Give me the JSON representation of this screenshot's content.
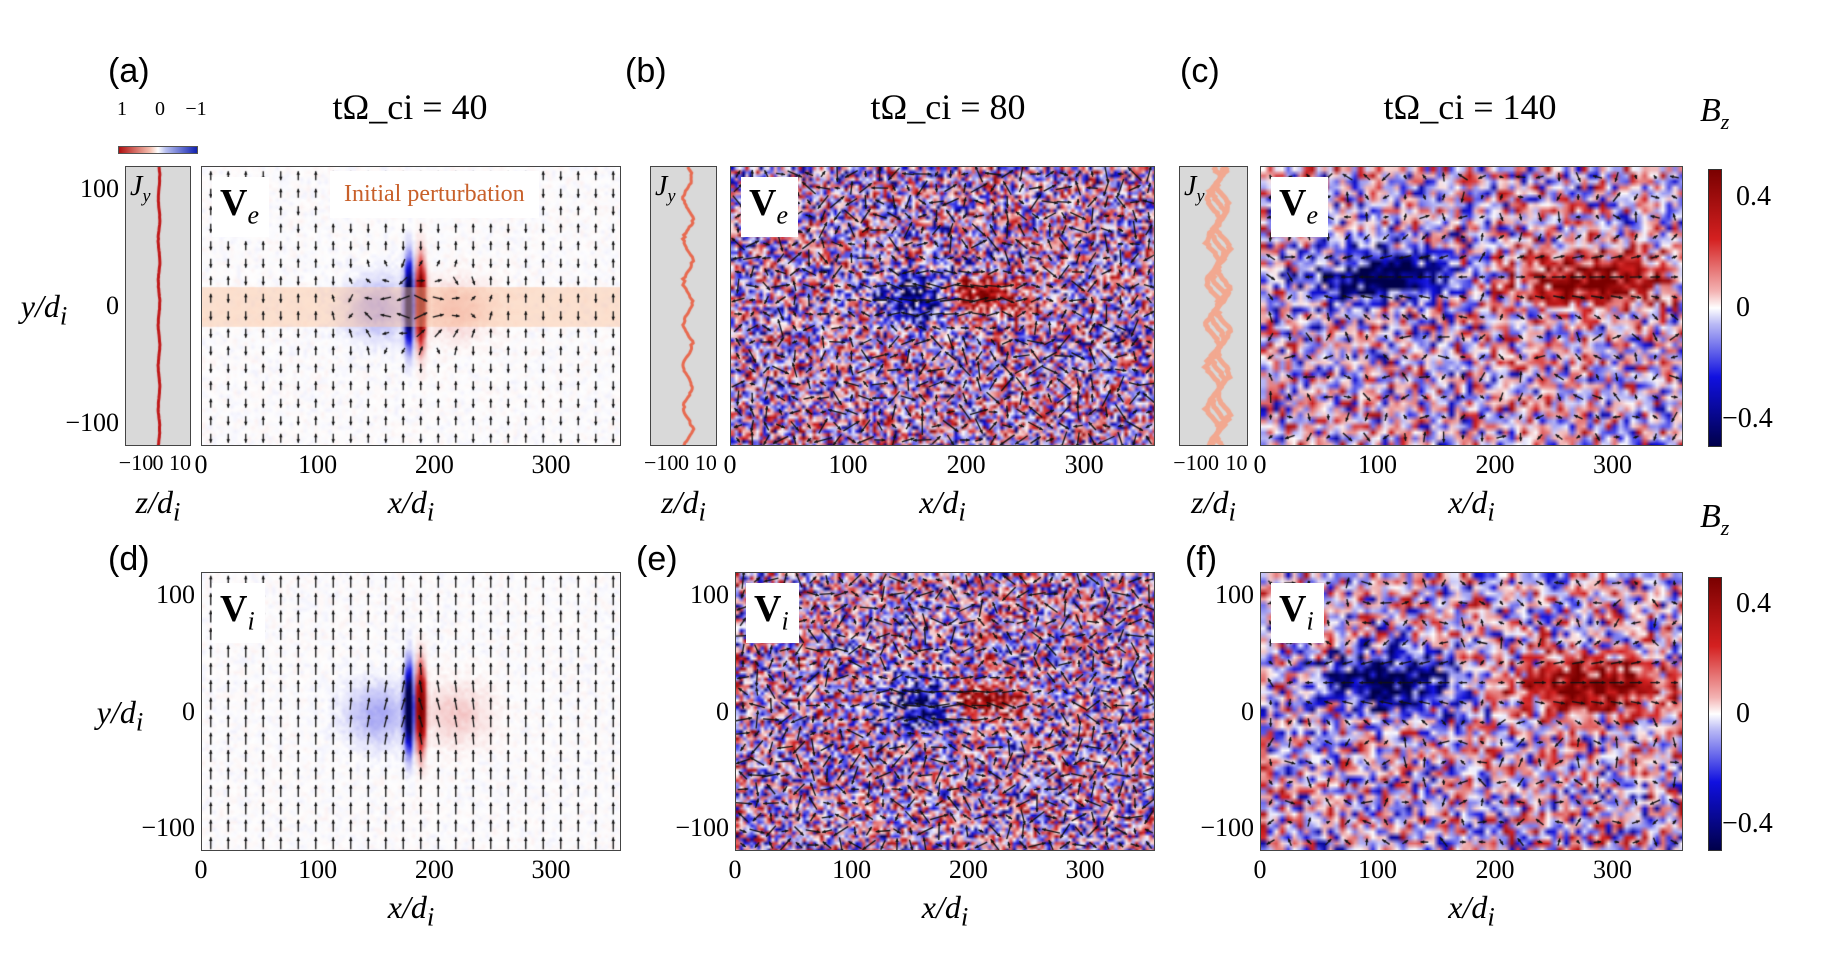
{
  "panel_labels": [
    "(a)",
    "(b)",
    "(c)",
    "(d)",
    "(e)",
    "(f)"
  ],
  "titles": [
    "tΩ_ci = 40",
    "tΩ_ci = 80",
    "tΩ_ci = 140"
  ],
  "annotation": "Initial perturbation",
  "colorbar": {
    "label": "B",
    "label_sub": "z",
    "ticks": [
      "0.4",
      "0",
      "−0.4"
    ],
    "range": [
      -0.5,
      0.5
    ],
    "colors": [
      "#00004a",
      "#1010e0",
      "#ffffff",
      "#d42020",
      "#7a0000"
    ]
  },
  "jy_colorbar": {
    "ticks": [
      "1",
      "0",
      "−1"
    ]
  },
  "jy_inset": {
    "label": "J",
    "label_sub": "y",
    "xticks": [
      "−10",
      "0",
      "10"
    ],
    "xlabel": "z/d",
    "xlabel_sub": "i",
    "background": "#d9d9d9"
  },
  "axes": {
    "xlabel": "x/d",
    "xlabel_sub": "i",
    "ylabel": "y/d",
    "ylabel_sub": "i",
    "xticks": [
      "0",
      "100",
      "200",
      "300"
    ],
    "yticks": [
      "100",
      "0",
      "−100"
    ]
  },
  "chart_data": [
    {
      "type": "heatmap",
      "panel": "(a)",
      "time": "tΩ_ci = 40",
      "field": "B_z",
      "vectors": "V_e",
      "vector_label": "V",
      "vector_sub": "e",
      "xlim": [
        0,
        360
      ],
      "ylim": [
        -120,
        120
      ],
      "inset": "J_y",
      "highlight_band_y": [
        -17,
        17
      ]
    },
    {
      "type": "heatmap",
      "panel": "(b)",
      "time": "tΩ_ci = 80",
      "field": "B_z",
      "vectors": "V_e",
      "vector_label": "V",
      "vector_sub": "e",
      "xlim": [
        0,
        360
      ],
      "ylim": [
        -120,
        120
      ],
      "inset": "J_y"
    },
    {
      "type": "heatmap",
      "panel": "(c)",
      "time": "tΩ_ci = 140",
      "field": "B_z",
      "vectors": "V_e",
      "vector_label": "V",
      "vector_sub": "e",
      "xlim": [
        0,
        360
      ],
      "ylim": [
        -120,
        120
      ],
      "inset": "J_y"
    },
    {
      "type": "heatmap",
      "panel": "(d)",
      "time": "tΩ_ci = 40",
      "field": "B_z",
      "vectors": "V_i",
      "vector_label": "V",
      "vector_sub": "i",
      "xlim": [
        0,
        360
      ],
      "ylim": [
        -120,
        120
      ]
    },
    {
      "type": "heatmap",
      "panel": "(e)",
      "time": "tΩ_ci = 80",
      "field": "B_z",
      "vectors": "V_i",
      "vector_label": "V",
      "vector_sub": "i",
      "xlim": [
        0,
        360
      ],
      "ylim": [
        -120,
        120
      ]
    },
    {
      "type": "heatmap",
      "panel": "(f)",
      "time": "tΩ_ci = 140",
      "field": "B_z",
      "vectors": "V_i",
      "vector_label": "V",
      "vector_sub": "i",
      "xlim": [
        0,
        360
      ],
      "ylim": [
        -120,
        120
      ]
    }
  ]
}
